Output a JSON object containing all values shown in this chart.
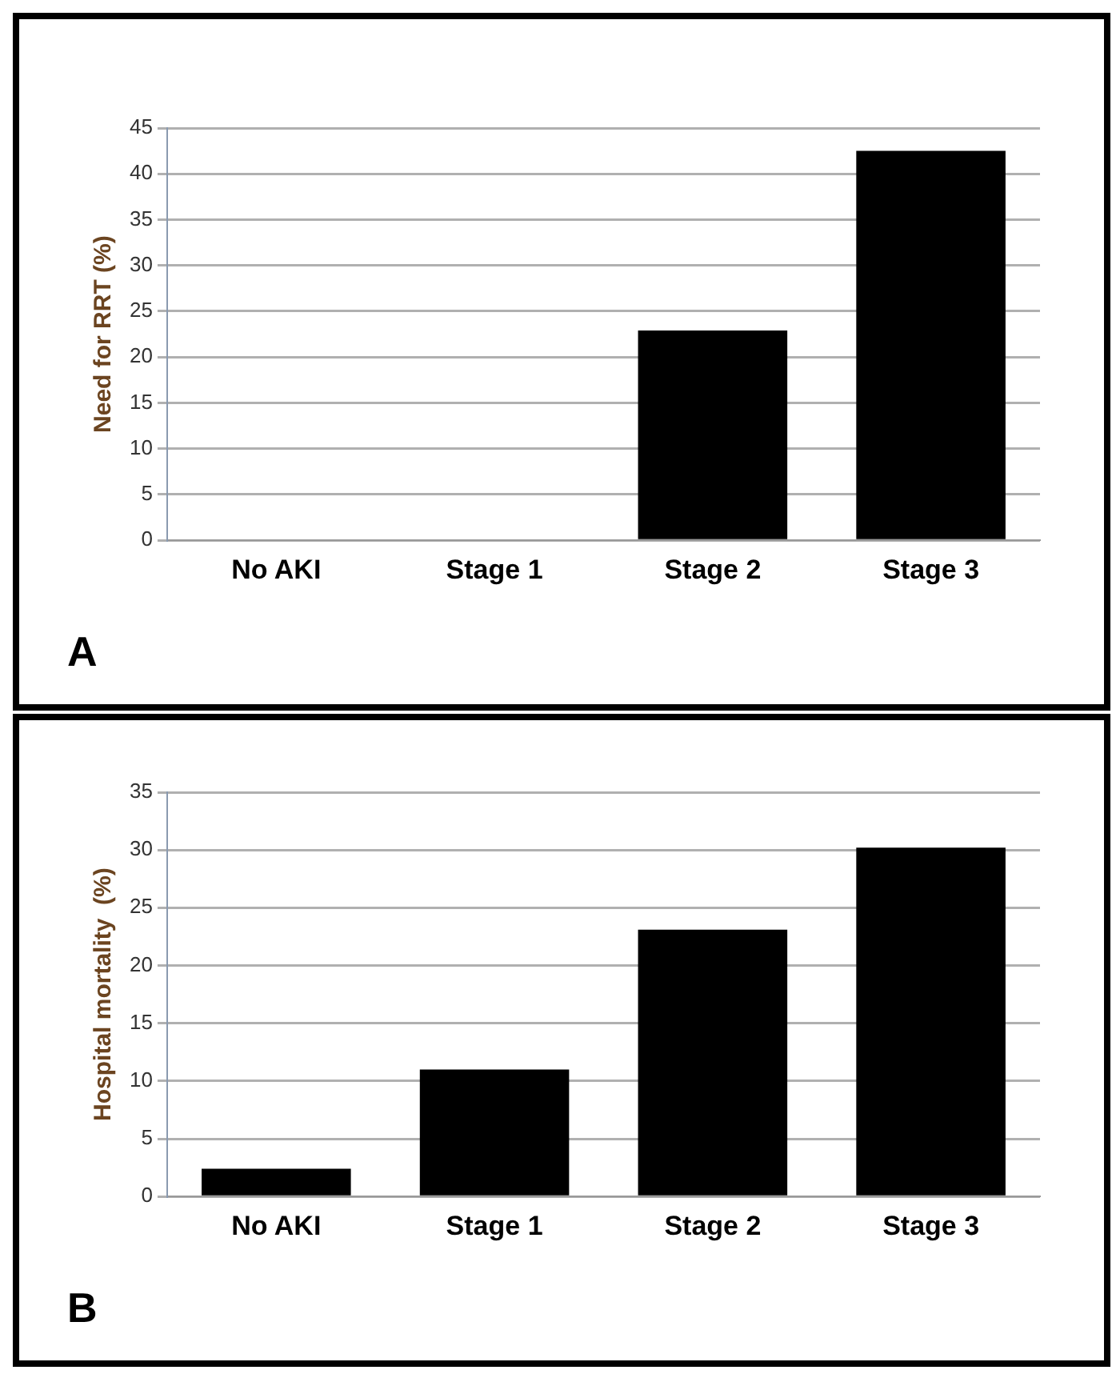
{
  "chart_data": [
    {
      "type": "bar",
      "ylabel": "Need for RRT (%)",
      "categories": [
        "No AKI",
        "Stage 1",
        "Stage 2",
        "Stage 3"
      ],
      "values": [
        0,
        0,
        22.9,
        42.5
      ],
      "color": "#000000",
      "ylim": [
        0,
        45
      ],
      "yticks": [
        0,
        5,
        10,
        15,
        20,
        25,
        30,
        35,
        40,
        45
      ],
      "grid": "y",
      "annotations": [
        "A"
      ]
    },
    {
      "type": "bar",
      "ylabel": "Hospital mortality  (%)",
      "categories": [
        "No AKI",
        "Stage 1",
        "Stage 2",
        "Stage 3"
      ],
      "values": [
        2.4,
        11.0,
        23.1,
        30.2
      ],
      "color": "#000000",
      "ylim": [
        0,
        35
      ],
      "yticks": [
        0,
        5,
        10,
        15,
        20,
        25,
        30,
        35
      ],
      "grid": "y",
      "annotations": [
        "B"
      ]
    }
  ]
}
